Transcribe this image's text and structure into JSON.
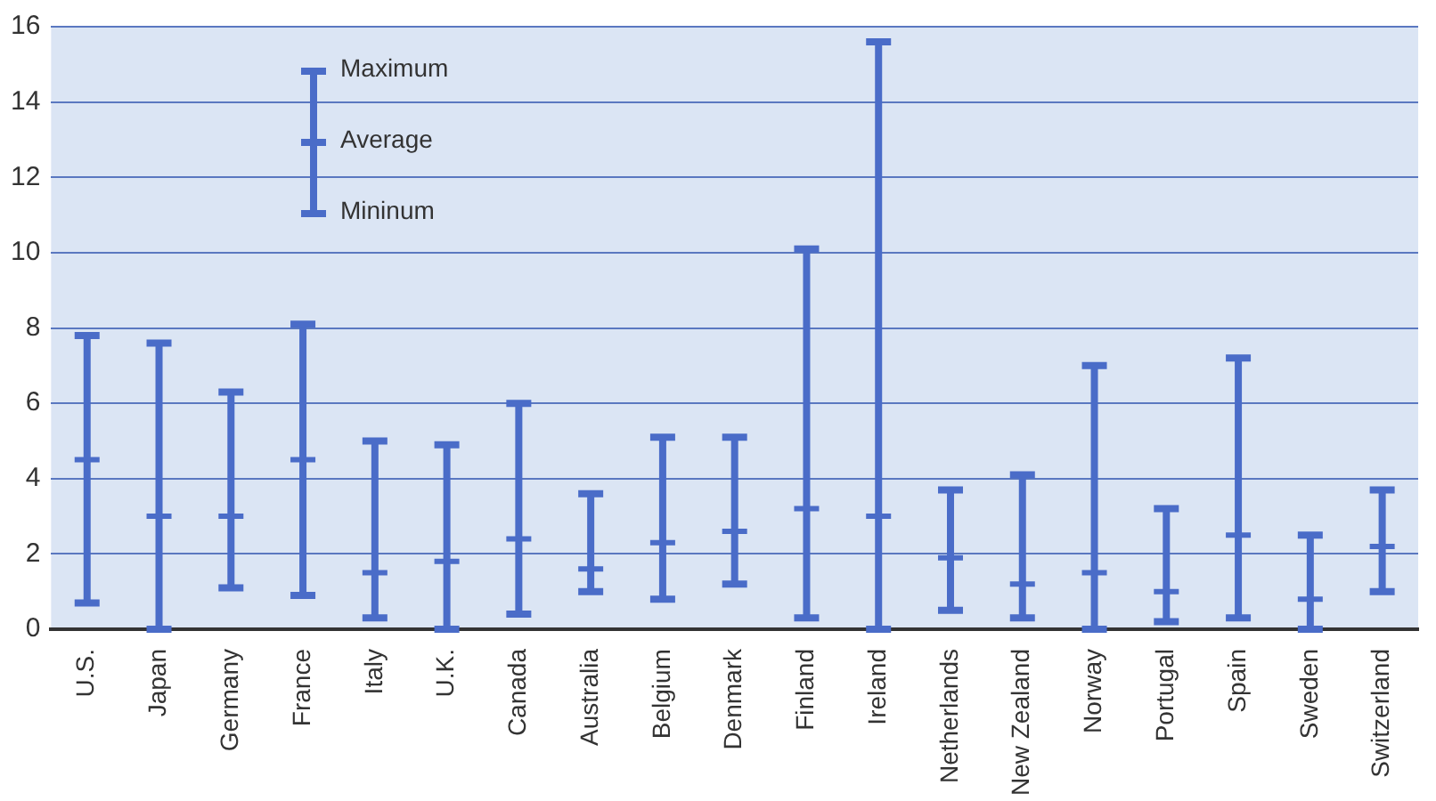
{
  "chart_data": {
    "type": "scatter",
    "categories": [
      "U.S.",
      "Japan",
      "Germany",
      "France",
      "Italy",
      "U.K.",
      "Canada",
      "Australia",
      "Belgium",
      "Denmark",
      "Finland",
      "Ireland",
      "Netherlands",
      "New Zealand",
      "Norway",
      "Portugal",
      "Spain",
      "Sweden",
      "Switzerland"
    ],
    "series": [
      {
        "color": "#4a6cc8",
        "values": [
          4.5,
          3,
          3,
          4.5,
          1.5,
          1.8,
          2.4,
          1.6,
          2.3,
          2.6,
          3.2,
          3,
          1.9,
          1.2,
          1.5,
          1.0,
          2.5,
          0.8,
          2.2
        ],
        "errors": [
          [
            0.7,
            7.8
          ],
          [
            0,
            7.6
          ],
          [
            1.1,
            6.3
          ],
          [
            0.9,
            8.1
          ],
          [
            0.3,
            5
          ],
          [
            0,
            4.9
          ],
          [
            0.4,
            6
          ],
          [
            1.0,
            3.6
          ],
          [
            0.8,
            5.1
          ],
          [
            1.2,
            5.1
          ],
          [
            0.3,
            10.1
          ],
          [
            0,
            15.6
          ],
          [
            0.5,
            3.7
          ],
          [
            0.3,
            4.1
          ],
          [
            0,
            7
          ],
          [
            0.2,
            3.2
          ],
          [
            0.3,
            7.2
          ],
          [
            0,
            2.5
          ],
          [
            1.0,
            3.7
          ]
        ]
      }
    ],
    "ylim": [
      0,
      16
    ],
    "yticks": [
      0,
      2,
      4,
      6,
      8,
      10,
      12,
      14,
      16
    ],
    "grid": "y",
    "marker": "cross",
    "annotations": [
      "Maximum",
      "Average",
      "Mininum"
    ]
  }
}
